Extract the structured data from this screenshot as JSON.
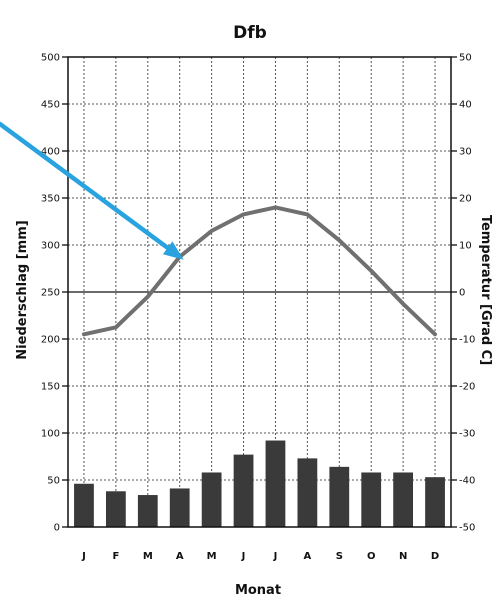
{
  "chart_data": {
    "type": "climate-diagram",
    "title": "Dfb",
    "xlabel": "Monat",
    "ylabel_left": "Niederschlag [mm]",
    "ylabel_right": "Temperatur [Grad C]",
    "months": [
      "J",
      "F",
      "M",
      "A",
      "M",
      "J",
      "J",
      "A",
      "S",
      "O",
      "N",
      "D"
    ],
    "precip": {
      "type": "bar",
      "color": "#3a3a3a",
      "ylim": [
        0,
        500
      ],
      "ticks": [
        0,
        50,
        100,
        150,
        200,
        250,
        300,
        350,
        400,
        450,
        500
      ],
      "values": [
        46,
        38,
        34,
        41,
        58,
        77,
        92,
        73,
        64,
        58,
        58,
        53
      ]
    },
    "temperature": {
      "type": "line",
      "color": "#707070",
      "ylim": [
        -50,
        50
      ],
      "ticks": [
        -50,
        -40,
        -30,
        -20,
        -10,
        0,
        10,
        20,
        30,
        40,
        50
      ],
      "values": [
        -9,
        -7.5,
        -1,
        7.5,
        13,
        16.5,
        18,
        16.5,
        11,
        4.5,
        -2.5,
        -9
      ]
    },
    "grid": true,
    "annotation": {
      "type": "arrow",
      "color": "#29a3e0",
      "points_to": "temperature line (April)"
    }
  }
}
